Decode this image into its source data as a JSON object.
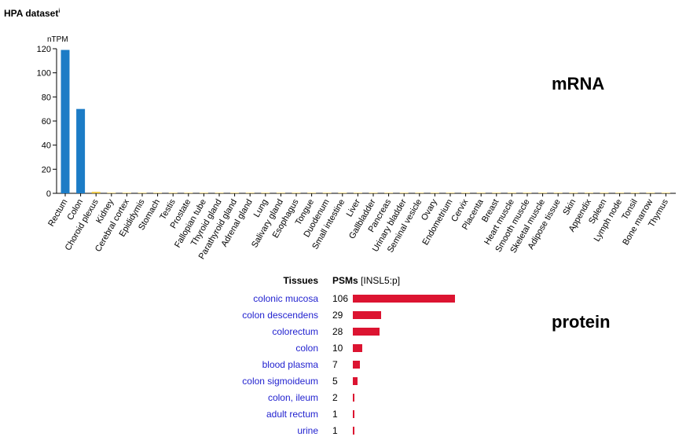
{
  "header": {
    "title": "HPA dataset",
    "info_mark": "i"
  },
  "mrna_label": "mRNA",
  "protein_label": "protein",
  "colors": {
    "mrna_bar": "#1c7cc6",
    "mrna_small_bar": "#e8c33a",
    "protein_bar": "#dc1431",
    "tissue_link": "#1f1fcf"
  },
  "chart_data": [
    {
      "type": "bar",
      "title": "",
      "xlabel": "",
      "ylabel": "nTPM",
      "ylim": [
        0,
        120
      ],
      "yticks": [
        0,
        20,
        40,
        60,
        80,
        100,
        120
      ],
      "grid": false,
      "categories": [
        "Rectum",
        "Colon",
        "Choroid plexus",
        "Kidney",
        "Cerebral cortex",
        "Epididymis",
        "Stomach",
        "Testis",
        "Prostate",
        "Fallopian tube",
        "Thyroid gland",
        "Parathyroid gland",
        "Adrenal gland",
        "Lung",
        "Salivary gland",
        "Esophagus",
        "Tongue",
        "Duodenum",
        "Small intestine",
        "Liver",
        "Gallbladder",
        "Pancreas",
        "Urinary bladder",
        "Seminal vesicle",
        "Ovary",
        "Endometrium",
        "Cervix",
        "Placenta",
        "Breast",
        "Heart muscle",
        "Smooth muscle",
        "Skeletal muscle",
        "Adipose tissue",
        "Skin",
        "Appendix",
        "Spleen",
        "Lymph node",
        "Tonsil",
        "Bone marrow",
        "Thymus"
      ],
      "values": [
        119,
        70,
        1.2,
        0.4,
        0.2,
        0.1,
        0.1,
        0.1,
        0.1,
        0.1,
        0.1,
        0.1,
        0.1,
        0.1,
        0.1,
        0.1,
        0.1,
        0.1,
        0.1,
        0.1,
        0.1,
        0.1,
        0.1,
        0.1,
        0.1,
        0.1,
        0.1,
        0.1,
        0.1,
        0.1,
        0.1,
        0.1,
        0.1,
        0.1,
        0.1,
        0.1,
        0.1,
        0.1,
        0.1,
        0.1
      ]
    },
    {
      "type": "bar",
      "orientation": "horizontal",
      "headers": {
        "tissue": "Tissues",
        "psm": "PSMs",
        "psm_suffix": " [INSL5:p]"
      },
      "rows": [
        {
          "tissue": "colonic mucosa",
          "value": 106
        },
        {
          "tissue": "colon descendens",
          "value": 29
        },
        {
          "tissue": "colorectum",
          "value": 28
        },
        {
          "tissue": "colon",
          "value": 10
        },
        {
          "tissue": "blood plasma",
          "value": 7
        },
        {
          "tissue": "colon sigmoideum",
          "value": 5
        },
        {
          "tissue": "colon, ileum",
          "value": 2
        },
        {
          "tissue": "adult rectum",
          "value": 1
        },
        {
          "tissue": "urine",
          "value": 1
        }
      ]
    }
  ]
}
